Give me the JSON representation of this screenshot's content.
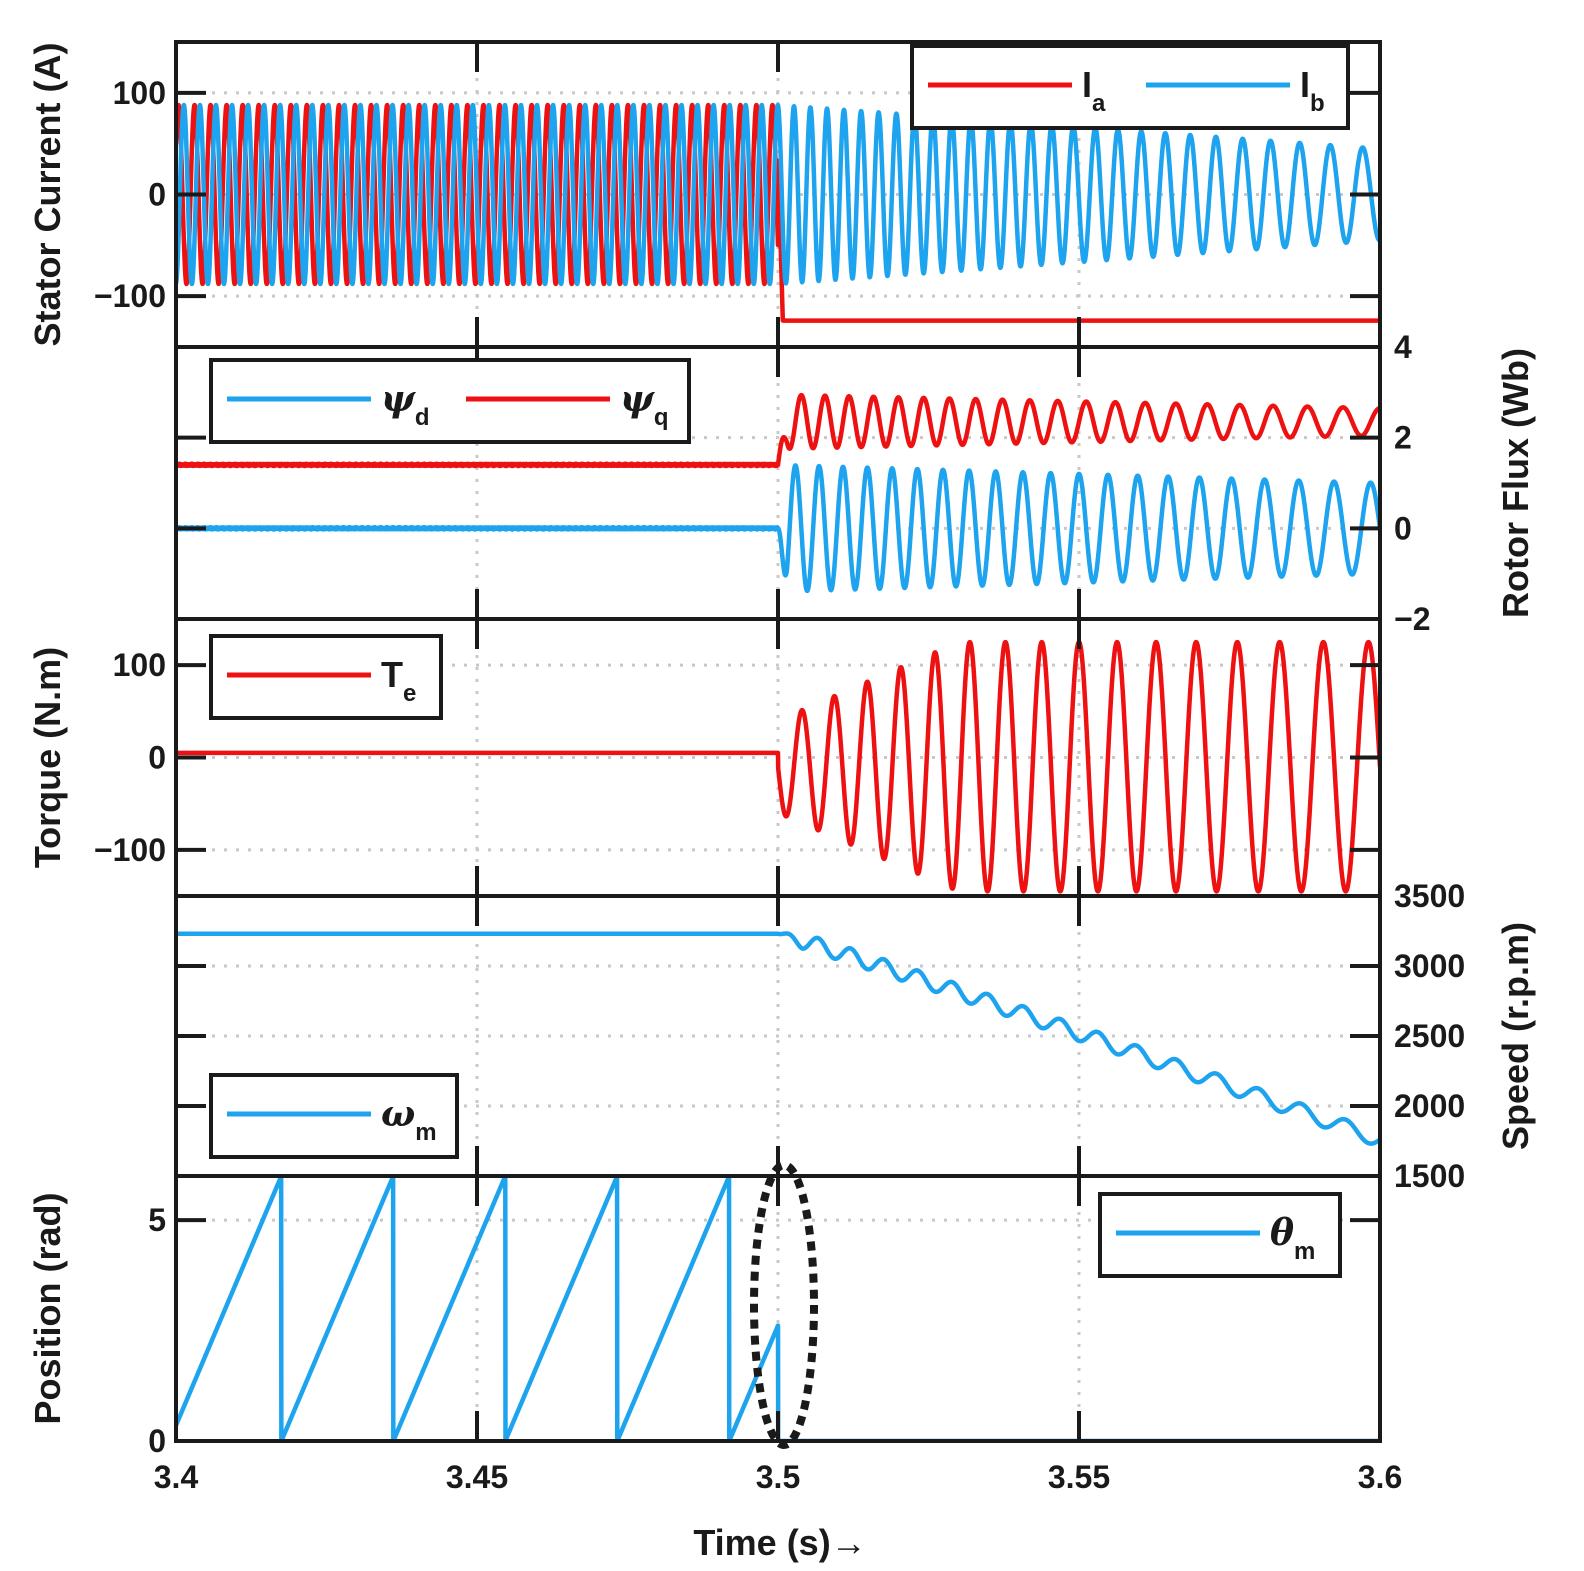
{
  "chart_data": [
    {
      "id": "current",
      "type": "line",
      "ylabel": "Stator Current (A)",
      "y_axis_side": "left",
      "ylim": [
        -150,
        150
      ],
      "yticks": [
        {
          "value": 100,
          "label": "100"
        },
        {
          "value": 0,
          "label": "0"
        },
        {
          "value": -100,
          "label": "−100"
        }
      ],
      "legend_position": "top-right",
      "series": [
        {
          "name": "I",
          "subscript": "a",
          "color": "#ee1111",
          "description": "sinusoid amplitude 88 A, ~375 Hz until 3.5 s, then drops to -124 A constant",
          "amplitude": 88,
          "frequency_hz": 375,
          "after_fault_value": -124
        },
        {
          "name": "I",
          "subscript": "b",
          "color": "#1ea3ef",
          "description": "sinusoid amplitude 88 A, ~375 Hz until 3.5 s, then decaying frequency/amplitude to ~45 A at 3.6 s",
          "amplitude": 88,
          "frequency_hz": 375,
          "end_amplitude": 45
        }
      ]
    },
    {
      "id": "flux",
      "type": "line",
      "ylabel": "Rotor Flux (Wb)",
      "y_axis_side": "right",
      "ylim": [
        -2,
        4
      ],
      "yticks": [
        {
          "value": 4,
          "label": "4"
        },
        {
          "value": 2,
          "label": "2"
        },
        {
          "value": 0,
          "label": "0"
        },
        {
          "value": -2,
          "label": "−2"
        }
      ],
      "legend_position": "top-left",
      "series": [
        {
          "name": "ψ",
          "subscript": "d",
          "color": "#1ea3ef",
          "greek": true,
          "before_fault": 0,
          "after_fault_center": 0,
          "after_fault_amplitude_start": 1.4,
          "after_fault_amplitude_end": 1.0
        },
        {
          "name": "ψ",
          "subscript": "q",
          "color": "#ee1111",
          "greek": true,
          "before_fault": 1.4,
          "after_fault_center": 2.35,
          "after_fault_amplitude_start": 0.6,
          "after_fault_amplitude_end": 0.3
        }
      ]
    },
    {
      "id": "torque",
      "type": "line",
      "ylabel": "Torque (N.m)",
      "y_axis_side": "left",
      "ylim": [
        -150,
        150
      ],
      "yticks": [
        {
          "value": 100,
          "label": "100"
        },
        {
          "value": 0,
          "label": "0"
        },
        {
          "value": -100,
          "label": "−100"
        }
      ],
      "legend_position": "top-left",
      "series": [
        {
          "name": "T",
          "subscript": "e",
          "color": "#ee1111",
          "before_fault": 5,
          "after_fault_center": -10,
          "after_fault_amplitude_peak": 135
        }
      ]
    },
    {
      "id": "speed",
      "type": "line",
      "ylabel": "Speed (r.p.m)",
      "y_axis_side": "right",
      "ylim": [
        1500,
        3500
      ],
      "yticks": [
        {
          "value": 3500,
          "label": "3500"
        },
        {
          "value": 3000,
          "label": "3000"
        },
        {
          "value": 2500,
          "label": "2500"
        },
        {
          "value": 2000,
          "label": "2000"
        },
        {
          "value": 1500,
          "label": "1500"
        }
      ],
      "legend_position": "bottom-left",
      "series": [
        {
          "name": "ω",
          "subscript": "m",
          "color": "#1ea3ef",
          "greek": true,
          "before_fault": 3230,
          "at_end": 1760
        }
      ]
    },
    {
      "id": "position",
      "type": "line",
      "ylabel": "Position (rad)",
      "y_axis_side": "left",
      "ylim": [
        0,
        6
      ],
      "yticks": [
        {
          "value": 5,
          "label": "5"
        },
        {
          "value": 0,
          "label": "0"
        }
      ],
      "legend_position": "top-right",
      "series": [
        {
          "name": "θ",
          "subscript": "m",
          "color": "#1ea3ef",
          "greek": true,
          "sawtooth_period_s": 0.0186,
          "peak": 6.0,
          "after_fault_value": 0
        }
      ]
    }
  ],
  "x_axis": {
    "label": "Time (s)→",
    "xlim": [
      3.4,
      3.6
    ],
    "ticks": [
      {
        "value": 3.4,
        "label": "3.4"
      },
      {
        "value": 3.45,
        "label": "3.45"
      },
      {
        "value": 3.5,
        "label": "3.5"
      },
      {
        "value": 3.55,
        "label": "3.55"
      },
      {
        "value": 3.6,
        "label": "3.6"
      }
    ],
    "fault_time": 3.5
  },
  "annotation": "dotted ellipse marking position drop at fault time 3.5 s",
  "colors": {
    "red": "#ee1111",
    "blue": "#1ea3ef",
    "axis": "#1a1a1a",
    "grid": "#c8c8c8"
  }
}
